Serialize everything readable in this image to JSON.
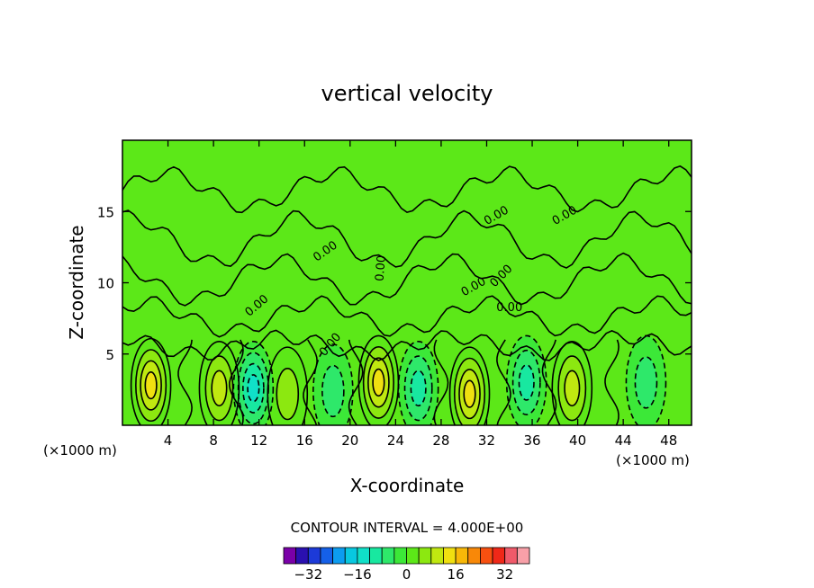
{
  "chart_data": {
    "type": "heatmap",
    "title": "vertical velocity",
    "xlabel": "X-coordinate",
    "ylabel": "Z-coordinate",
    "x_unit": "(×1000 m)",
    "x_unit_right": "(×1000 m)",
    "xlim": [
      0,
      50
    ],
    "ylim": [
      0,
      20
    ],
    "x_ticks": [
      4,
      8,
      12,
      16,
      20,
      24,
      28,
      32,
      36,
      40,
      44,
      48
    ],
    "y_ticks": [
      5,
      10,
      15
    ],
    "contour_interval_text": "CONTOUR INTERVAL = 4.000E+00",
    "contour_labels": [
      "0.00",
      "0.00",
      "0.00",
      "0.00",
      "0.00",
      "0.00",
      "0.00",
      "0.00",
      "0.00"
    ],
    "legend": {
      "colors": [
        "#7a00a8",
        "#2a10b0",
        "#1c3ad8",
        "#1560e8",
        "#0c9cf0",
        "#08c8e0",
        "#10e0c8",
        "#18e8a0",
        "#2ee86a",
        "#3ce838",
        "#5ce818",
        "#8ce810",
        "#c0e810",
        "#f0e010",
        "#f8b808",
        "#f88808",
        "#f85010",
        "#f02818",
        "#f05a6a",
        "#f8a0a8"
      ],
      "tick_labels": [
        "-32",
        "-16",
        "0",
        "16",
        "32"
      ],
      "tick_values": [
        -32,
        -16,
        0,
        16,
        32
      ]
    },
    "field": {
      "background_color": "#2ee800",
      "positive_cells": [
        {
          "x": 2.5,
          "z": 2.8,
          "value": 12
        },
        {
          "x": 8.5,
          "z": 2.6,
          "value": 8
        },
        {
          "x": 14.5,
          "z": 2.2,
          "value": 4
        },
        {
          "x": 22.5,
          "z": 3.0,
          "value": 12
        },
        {
          "x": 30.5,
          "z": 2.2,
          "value": 12
        },
        {
          "x": 39.5,
          "z": 2.6,
          "value": 8
        }
      ],
      "negative_cells": [
        {
          "x": 11.5,
          "z": 2.6,
          "value": -12
        },
        {
          "x": 18.5,
          "z": 2.4,
          "value": -4
        },
        {
          "x": 26.0,
          "z": 2.6,
          "value": -8
        },
        {
          "x": 35.5,
          "z": 3.0,
          "value": -8
        },
        {
          "x": 46.0,
          "z": 3.0,
          "value": -4
        }
      ]
    }
  }
}
